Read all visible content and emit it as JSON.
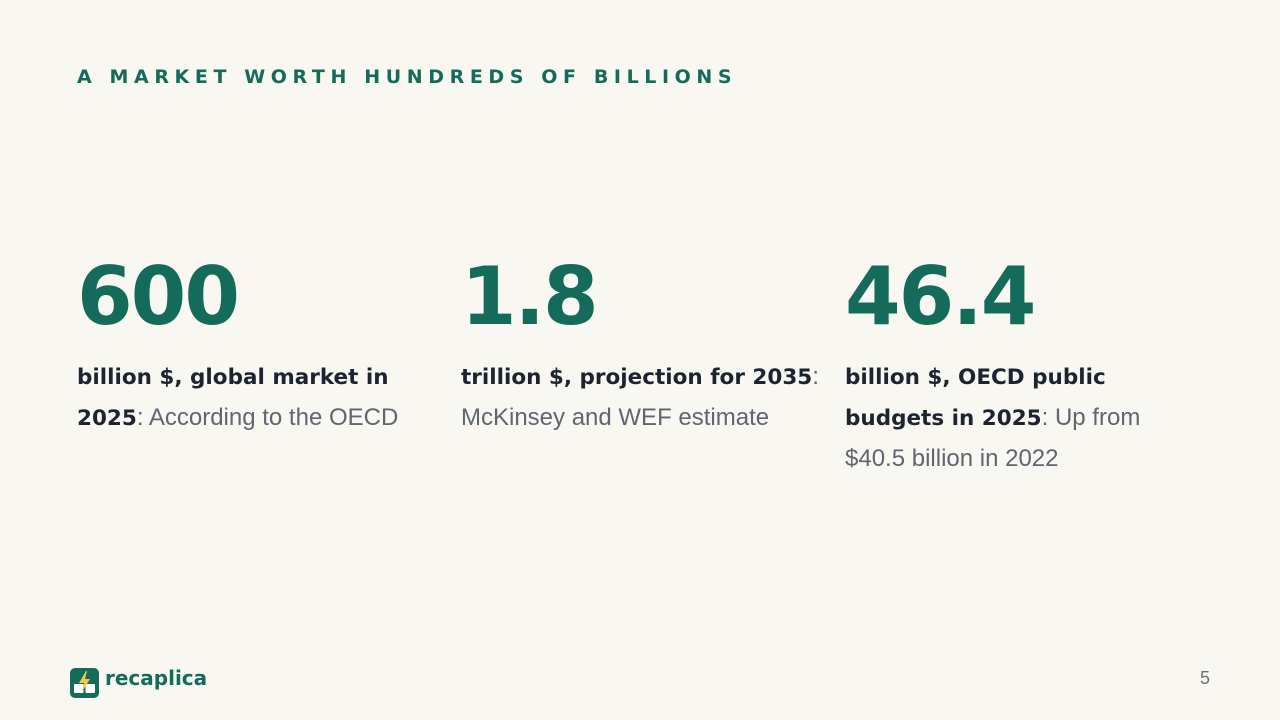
{
  "slide": {
    "title": "A MARKET WORTH HUNDREDS OF BILLIONS",
    "page_number": "5"
  },
  "stats": [
    {
      "number": "600",
      "bold": "billion $, global market in 2025",
      "rest": ": According to the OECD"
    },
    {
      "number": "1.8",
      "bold": "trillion $, projection for 2035",
      "rest": ": McKinsey and WEF estimate"
    },
    {
      "number": "46.4",
      "bold": "billion $, OECD public budgets in 2025",
      "rest": ": Up from $40.5 billion in 2022"
    }
  ],
  "brand": {
    "name": "recaplica",
    "icon": "recaplica-logo-icon",
    "color": "#146b59",
    "accent": "#f2c94c"
  }
}
